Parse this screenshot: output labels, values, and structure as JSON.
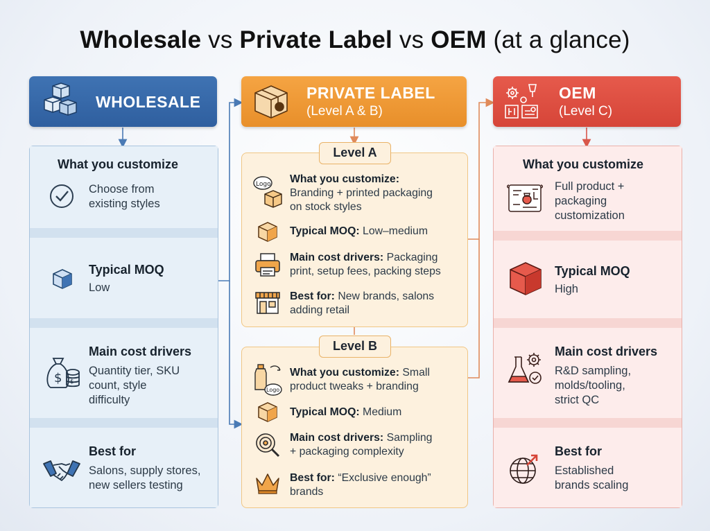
{
  "title": {
    "part1": "Wholesale",
    "sep1": " vs ",
    "part2": "Private Label",
    "sep2": " vs ",
    "part3": "OEM",
    "part4": " (at a glance)"
  },
  "wholesale": {
    "header": "WHOLESALE",
    "customize_label": "What you customize",
    "customize_text": [
      "Choose from",
      "existing styles"
    ],
    "moq_label": "Typical MOQ",
    "moq_value": "Low",
    "cost_label": "Main cost drivers",
    "cost_text": [
      "Quantity tier, SKU",
      "count, style",
      "difficulty"
    ],
    "best_label": "Best for",
    "best_text": [
      "Salons, supply stores,",
      "new sellers testing"
    ]
  },
  "private_label": {
    "header": "PRIVATE LABEL",
    "subheader": "(Level A & B)",
    "level_a": {
      "label": "Level A",
      "customize_label": "What you customize:",
      "customize_text": [
        "Branding + printed packaging",
        "on stock styles"
      ],
      "moq_label": "Typical MOQ:",
      "moq_value": "Low–medium",
      "cost_label": "Main cost drivers:",
      "cost_text_1": "Packaging",
      "cost_text_2": "print, setup fees, packing steps",
      "best_label": "Best for:",
      "best_text_1": "New brands, salons",
      "best_text_2": "adding retail",
      "logo_text": "Logo"
    },
    "level_b": {
      "label": "Level B",
      "customize_label": "What you customize:",
      "customize_text_1": "Small",
      "customize_text_2": "product tweaks + branding",
      "moq_label": "Typical MOQ:",
      "moq_value": "Medium",
      "cost_label": "Main cost drivers:",
      "cost_text_1": "Sampling",
      "cost_text_2": "+ packaging complexity",
      "best_label": "Best for:",
      "best_text_1": "“Exclusive enough”",
      "best_text_2": "brands",
      "logo_text": "Logo"
    }
  },
  "oem": {
    "header": "OEM",
    "subheader": "(Level C)",
    "customize_label": "What you customize",
    "customize_text": [
      "Full product +",
      "packaging",
      "customization"
    ],
    "moq_label": "Typical MOQ",
    "moq_value": "High",
    "cost_label": "Main cost drivers",
    "cost_text": [
      "R&D sampling,",
      "molds/tooling,",
      "strict QC"
    ],
    "best_label": "Best for",
    "best_text": [
      "Established",
      "brands scaling"
    ]
  },
  "colors": {
    "wholesale": "#3469aa",
    "private_label": "#ef9a37",
    "oem": "#dc4f42",
    "connector_w": "#4a7ab5",
    "connector_o": "#e07a5a"
  }
}
